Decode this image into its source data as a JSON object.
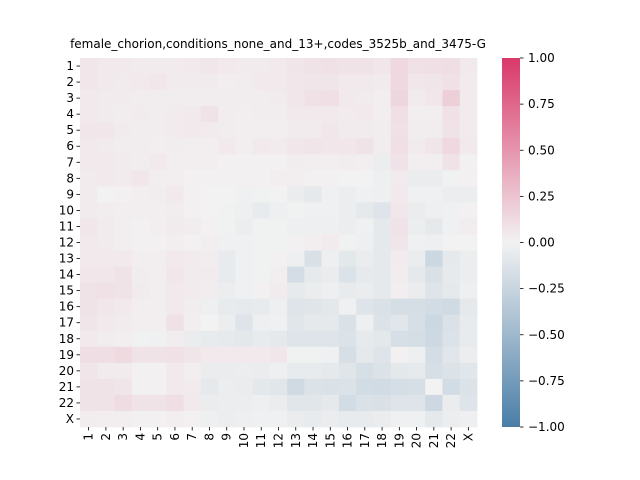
{
  "chart_data": {
    "type": "heatmap",
    "title": "female_chorion,conditions_none_and_13+,codes_3525b_and_3475-G",
    "labels": [
      "1",
      "2",
      "3",
      "4",
      "5",
      "6",
      "7",
      "8",
      "9",
      "10",
      "11",
      "12",
      "13",
      "14",
      "15",
      "16",
      "17",
      "18",
      "19",
      "20",
      "21",
      "22",
      "X"
    ],
    "colorbar": {
      "range": [
        -1.0,
        1.0
      ],
      "ticks": [
        1.0,
        0.75,
        0.5,
        0.25,
        0.0,
        -0.25,
        -0.5,
        -0.75,
        -1.0
      ],
      "tick_labels": [
        "1.00",
        "0.75",
        "0.50",
        "0.25",
        "0.00",
        "−0.25",
        "−0.50",
        "−0.75",
        "−1.00"
      ],
      "colors": {
        "positive": "#d9386a",
        "neutral": "#f2f2f2",
        "negative": "#4a7ea7"
      }
    },
    "values": [
      [
        0.06,
        0.05,
        0.05,
        0.04,
        0.04,
        0.04,
        0.05,
        0.06,
        0.05,
        0.04,
        0.04,
        0.05,
        0.07,
        0.08,
        0.09,
        0.08,
        0.08,
        0.06,
        0.14,
        0.09,
        0.1,
        0.11,
        0.05
      ],
      [
        0.06,
        0.05,
        0.04,
        0.05,
        0.06,
        0.04,
        0.04,
        0.04,
        0.02,
        0.03,
        0.05,
        0.05,
        0.06,
        0.07,
        0.07,
        0.05,
        0.05,
        0.04,
        0.14,
        0.06,
        0.07,
        0.09,
        0.04
      ],
      [
        0.05,
        0.04,
        0.04,
        0.03,
        0.03,
        0.03,
        0.03,
        0.03,
        0.03,
        0.03,
        0.03,
        0.04,
        0.06,
        0.09,
        0.1,
        0.05,
        0.04,
        0.02,
        0.15,
        0.04,
        0.06,
        0.19,
        0.04
      ],
      [
        0.05,
        0.04,
        0.03,
        0.04,
        0.03,
        0.04,
        0.05,
        0.08,
        0.03,
        0.02,
        0.03,
        0.03,
        0.05,
        0.05,
        0.05,
        0.04,
        0.05,
        0.02,
        0.1,
        0.02,
        0.02,
        0.09,
        0.04
      ],
      [
        0.06,
        0.06,
        0.04,
        0.03,
        0.03,
        0.04,
        0.05,
        0.04,
        0.03,
        0.02,
        0.02,
        0.02,
        0.04,
        0.04,
        0.06,
        0.04,
        0.04,
        0.03,
        0.09,
        0.03,
        0.03,
        0.08,
        0.04
      ],
      [
        0.05,
        0.04,
        0.03,
        0.03,
        0.02,
        0.03,
        0.02,
        0.02,
        0.05,
        0.02,
        0.05,
        0.04,
        0.06,
        0.07,
        0.06,
        0.06,
        0.08,
        0.03,
        0.1,
        0.04,
        0.07,
        0.14,
        0.05
      ],
      [
        0.05,
        0.05,
        0.04,
        0.03,
        0.05,
        0.02,
        0.02,
        0.02,
        0.01,
        0.01,
        0.01,
        0.01,
        0.03,
        0.02,
        0.02,
        0.03,
        0.02,
        -0.04,
        0.08,
        0.02,
        0.02,
        0.08,
        0.01
      ],
      [
        0.04,
        0.05,
        0.04,
        0.06,
        0.02,
        0.02,
        0.01,
        0.01,
        0.01,
        0.01,
        0.01,
        0.02,
        0.02,
        0.01,
        0.01,
        0.0,
        0.0,
        -0.03,
        0.04,
        -0.05,
        -0.05,
        -0.01,
        0.01
      ],
      [
        0.04,
        0.0,
        0.01,
        0.02,
        0.03,
        0.05,
        0.01,
        0.0,
        0.0,
        -0.02,
        -0.01,
        0.0,
        -0.05,
        -0.08,
        -0.02,
        -0.04,
        -0.02,
        -0.03,
        0.05,
        -0.02,
        -0.02,
        -0.04,
        -0.04
      ],
      [
        0.04,
        0.03,
        0.02,
        0.02,
        0.02,
        0.03,
        0.01,
        0.0,
        -0.01,
        -0.03,
        -0.06,
        -0.03,
        -0.01,
        -0.02,
        -0.02,
        -0.04,
        -0.08,
        -0.12,
        0.06,
        -0.05,
        -0.03,
        -0.02,
        0.01
      ],
      [
        0.06,
        0.04,
        0.02,
        0.01,
        0.02,
        0.04,
        0.03,
        0.01,
        -0.01,
        -0.04,
        -0.01,
        -0.01,
        -0.03,
        -0.03,
        -0.03,
        -0.04,
        -0.02,
        -0.08,
        0.08,
        -0.04,
        -0.08,
        -0.02,
        0.03
      ],
      [
        0.05,
        0.04,
        0.02,
        0.01,
        0.01,
        0.02,
        0.01,
        0.02,
        -0.02,
        -0.02,
        -0.01,
        -0.01,
        0.01,
        0.02,
        0.04,
        -0.01,
        -0.03,
        -0.08,
        0.07,
        -0.02,
        -0.03,
        0.0,
        0.0
      ],
      [
        0.05,
        0.05,
        0.05,
        0.02,
        0.02,
        0.05,
        0.04,
        0.03,
        -0.06,
        -0.02,
        -0.01,
        0.01,
        -0.03,
        -0.15,
        -0.03,
        -0.09,
        -0.05,
        -0.08,
        0.04,
        -0.05,
        -0.23,
        -0.08,
        -0.04
      ],
      [
        0.06,
        0.06,
        0.08,
        0.03,
        0.02,
        0.06,
        0.04,
        0.04,
        -0.06,
        -0.02,
        -0.01,
        0.02,
        -0.18,
        -0.07,
        -0.05,
        -0.13,
        -0.07,
        -0.08,
        0.03,
        -0.08,
        -0.15,
        -0.07,
        -0.04
      ],
      [
        0.08,
        0.09,
        0.08,
        0.04,
        0.02,
        0.05,
        0.04,
        0.03,
        -0.04,
        -0.02,
        0.01,
        0.04,
        -0.07,
        -0.05,
        -0.03,
        -0.06,
        -0.05,
        -0.08,
        0.02,
        -0.05,
        -0.12,
        -0.08,
        -0.03
      ],
      [
        0.08,
        0.06,
        0.05,
        0.02,
        0.02,
        0.05,
        0.03,
        -0.03,
        -0.06,
        -0.07,
        -0.06,
        -0.03,
        -0.12,
        -0.11,
        -0.09,
        -0.02,
        -0.12,
        -0.14,
        -0.17,
        -0.17,
        -0.19,
        -0.21,
        -0.08
      ],
      [
        0.07,
        0.05,
        0.04,
        0.02,
        0.02,
        0.09,
        0.02,
        0.0,
        -0.04,
        -0.12,
        -0.03,
        -0.02,
        -0.1,
        -0.08,
        -0.08,
        -0.14,
        -0.03,
        -0.13,
        -0.1,
        -0.16,
        -0.23,
        -0.14,
        -0.06
      ],
      [
        0.05,
        0.03,
        0.02,
        -0.01,
        -0.02,
        0.03,
        -0.05,
        -0.06,
        -0.07,
        -0.09,
        -0.06,
        -0.08,
        -0.12,
        -0.12,
        -0.12,
        -0.13,
        -0.07,
        -0.09,
        -0.16,
        -0.17,
        -0.22,
        -0.13,
        -0.06
      ],
      [
        0.11,
        0.11,
        0.13,
        0.08,
        0.08,
        0.09,
        0.07,
        0.05,
        0.05,
        0.05,
        0.05,
        0.06,
        -0.01,
        -0.01,
        -0.02,
        -0.16,
        -0.08,
        -0.12,
        0.01,
        -0.03,
        -0.18,
        -0.1,
        -0.04
      ],
      [
        0.07,
        0.04,
        0.04,
        0.01,
        0.01,
        0.05,
        0.02,
        -0.05,
        -0.05,
        -0.04,
        -0.05,
        -0.03,
        -0.06,
        -0.06,
        -0.08,
        -0.11,
        -0.16,
        -0.13,
        -0.09,
        -0.07,
        -0.16,
        -0.13,
        -0.1
      ],
      [
        0.08,
        0.08,
        0.07,
        0.01,
        0.01,
        0.05,
        0.04,
        -0.08,
        -0.04,
        -0.05,
        -0.09,
        -0.1,
        -0.21,
        -0.13,
        -0.14,
        -0.13,
        -0.19,
        -0.2,
        -0.17,
        -0.16,
        0.0,
        -0.19,
        -0.13
      ],
      [
        0.08,
        0.08,
        0.12,
        0.08,
        0.08,
        0.11,
        0.05,
        -0.05,
        -0.04,
        -0.04,
        -0.03,
        -0.05,
        -0.1,
        -0.1,
        -0.08,
        -0.19,
        -0.14,
        -0.15,
        -0.12,
        -0.12,
        -0.22,
        -0.05,
        -0.12
      ],
      [
        0.03,
        0.02,
        0.02,
        0.01,
        0.01,
        0.02,
        0.01,
        -0.03,
        -0.04,
        -0.03,
        -0.02,
        -0.02,
        -0.05,
        -0.06,
        -0.05,
        -0.06,
        -0.06,
        -0.05,
        -0.02,
        -0.02,
        -0.08,
        -0.04,
        -0.03
      ]
    ]
  }
}
